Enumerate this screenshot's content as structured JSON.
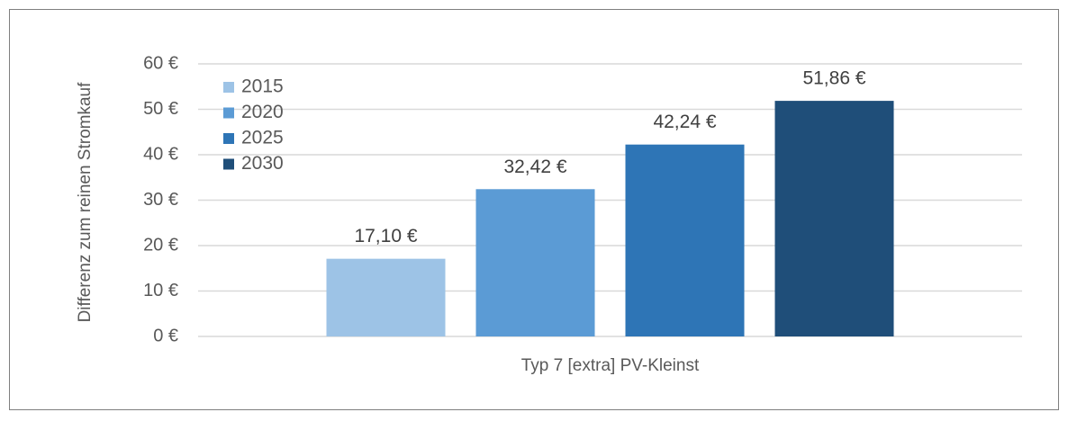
{
  "chart_data": {
    "type": "bar",
    "y_label": "Differenz zum reinen Stromkauf",
    "categories": [
      "Typ 7 [extra] PV-Kleinst"
    ],
    "series": [
      {
        "name": "2015",
        "color": "#9dc3e6",
        "values": [
          17.1
        ],
        "value_labels": [
          "17,10 €"
        ]
      },
      {
        "name": "2020",
        "color": "#5b9bd5",
        "values": [
          32.42
        ],
        "value_labels": [
          "32,42 €"
        ]
      },
      {
        "name": "2025",
        "color": "#2e75b6",
        "values": [
          42.24
        ],
        "value_labels": [
          "42,24 €"
        ]
      },
      {
        "name": "2030",
        "color": "#1f4e79",
        "values": [
          51.86
        ],
        "value_labels": [
          "51,86 €"
        ]
      }
    ],
    "ylim": [
      0,
      60
    ],
    "yticks": [
      {
        "value": 0,
        "label": "0 €"
      },
      {
        "value": 10,
        "label": "10 €"
      },
      {
        "value": 20,
        "label": "20 €"
      },
      {
        "value": 30,
        "label": "30 €"
      },
      {
        "value": 40,
        "label": "40 €"
      },
      {
        "value": 50,
        "label": "50 €"
      },
      {
        "value": 60,
        "label": "60 €"
      }
    ],
    "grid": true,
    "legend": "top-left"
  }
}
